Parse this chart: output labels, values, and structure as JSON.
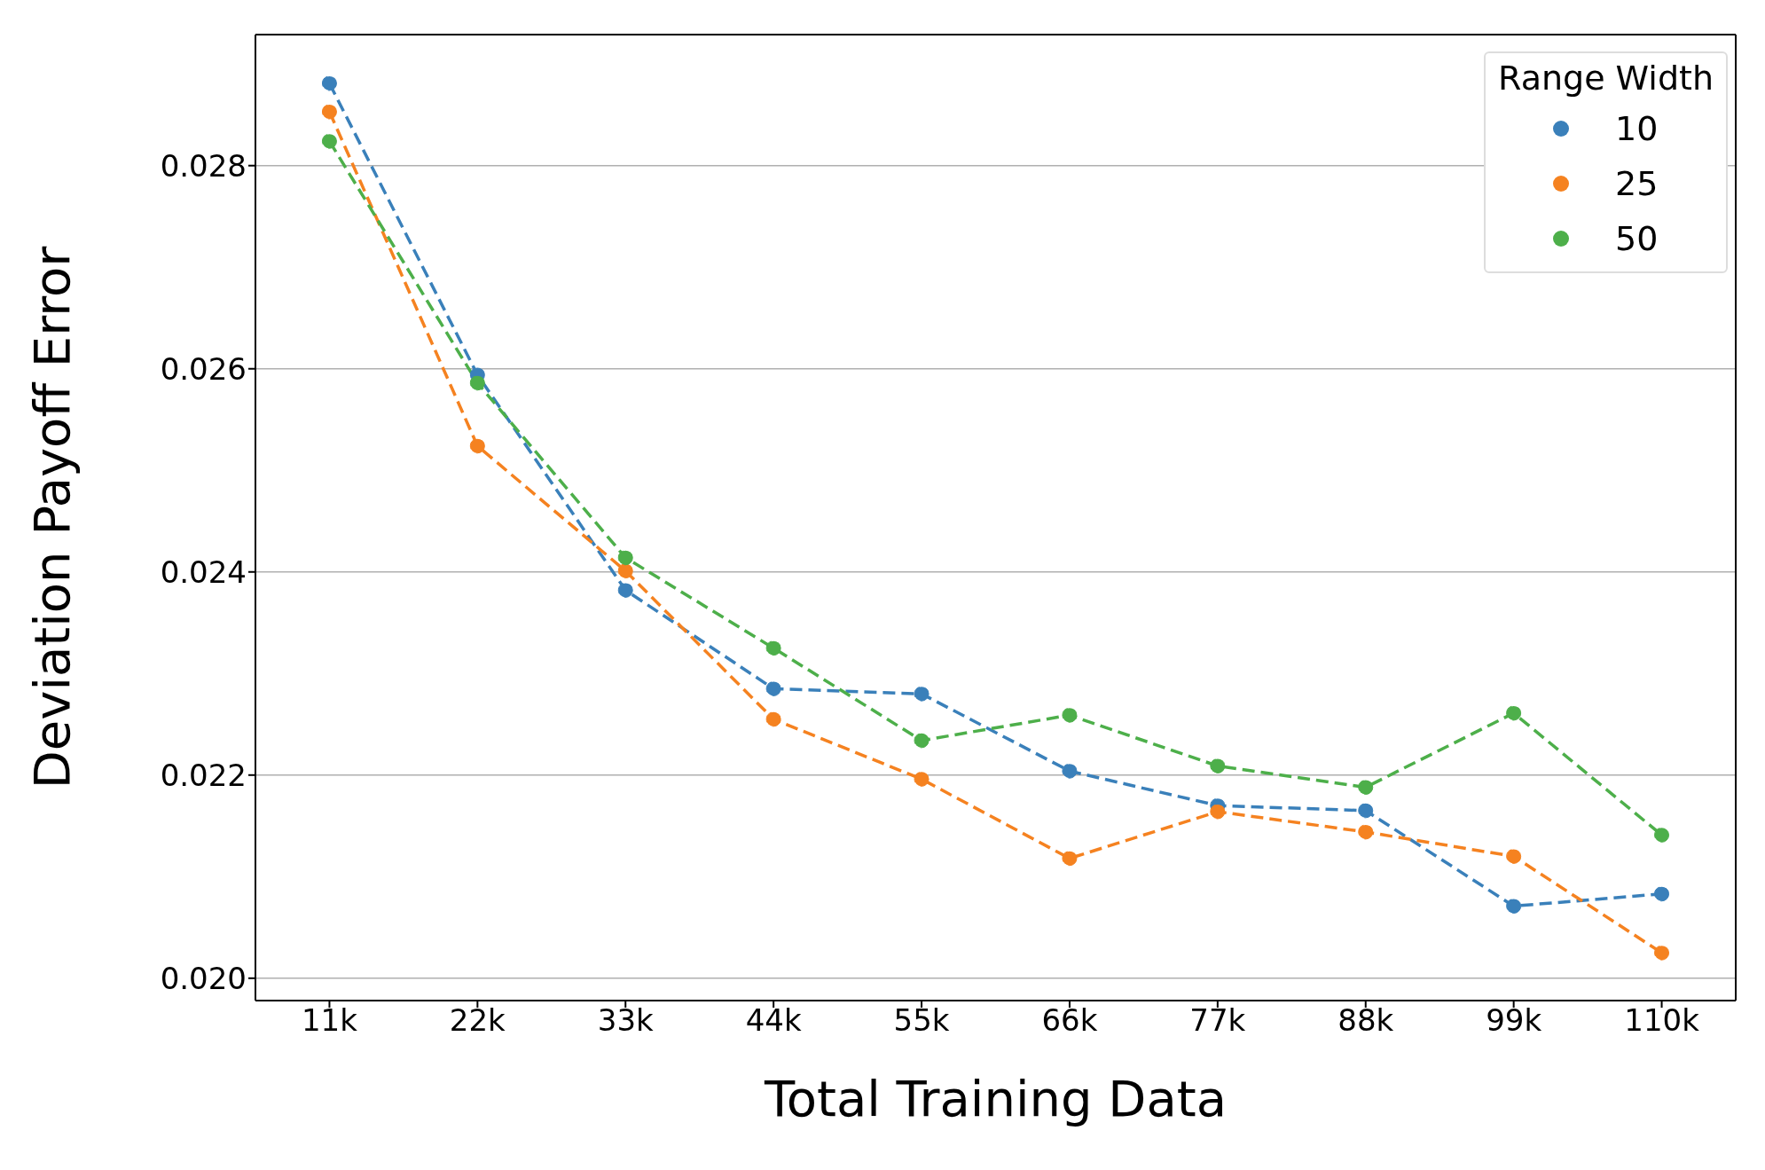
{
  "chart_data": {
    "type": "line",
    "xlabel": "Total Training Data",
    "ylabel": "Deviation Payoff Error",
    "legend_title": "Range Width",
    "categories": [
      "11k",
      "22k",
      "33k",
      "44k",
      "55k",
      "66k",
      "77k",
      "88k",
      "99k",
      "110k"
    ],
    "series": [
      {
        "name": "10",
        "color": "#3a80ba",
        "values": [
          0.02881,
          0.02594,
          0.02382,
          0.02285,
          0.0228,
          0.02204,
          0.0217,
          0.02165,
          0.02071,
          0.02083
        ]
      },
      {
        "name": "25",
        "color": "#f58220",
        "values": [
          0.02853,
          0.02524,
          0.02401,
          0.02255,
          0.02196,
          0.02118,
          0.02164,
          0.02144,
          0.0212,
          0.02025
        ]
      },
      {
        "name": "50",
        "color": "#4daf4a",
        "values": [
          0.02824,
          0.02586,
          0.02414,
          0.02325,
          0.02234,
          0.02259,
          0.02209,
          0.02188,
          0.02261,
          0.02141
        ]
      }
    ],
    "ylim": [
      0.01978,
      0.02929
    ],
    "yticks": [
      {
        "value": 0.02,
        "label": "0.020"
      },
      {
        "value": 0.022,
        "label": "0.022"
      },
      {
        "value": 0.024,
        "label": "0.024"
      },
      {
        "value": 0.026,
        "label": "0.026"
      },
      {
        "value": 0.028,
        "label": "0.028"
      }
    ],
    "grid": "y",
    "legend": "top right",
    "marker": "circle",
    "line_style": "dashed"
  }
}
